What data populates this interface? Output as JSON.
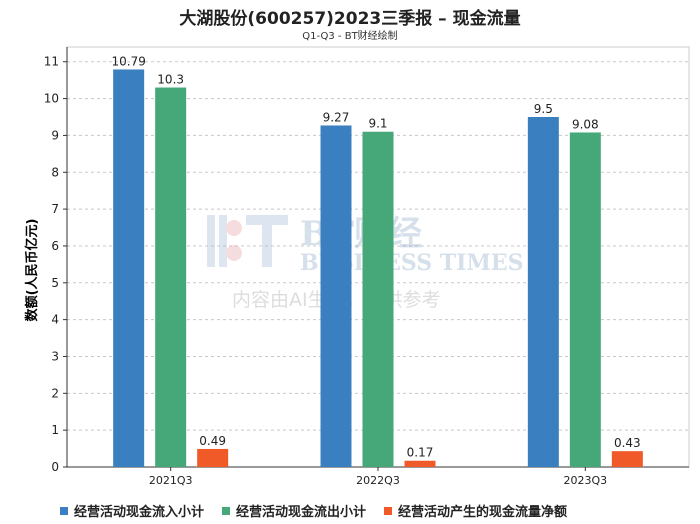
{
  "title": "大湖股份(600257)2023三季报 – 现金流量",
  "subtitle": "Q1-Q3 - BT财经绘制",
  "watermark": {
    "brand": "BT财经",
    "sub": "BUSINESS TIMES",
    "notice": "内容由AI生成，仅供参考"
  },
  "colors": {
    "series": [
      "#3a80c0",
      "#46a878",
      "#f05a28"
    ]
  },
  "chart_data": {
    "type": "bar",
    "categories": [
      "2021Q3",
      "2022Q3",
      "2023Q3"
    ],
    "series": [
      {
        "name": "经营活动现金流入小计",
        "values": [
          10.79,
          9.27,
          9.5
        ]
      },
      {
        "name": "经营活动现金流出小计",
        "values": [
          10.3,
          9.1,
          9.08
        ]
      },
      {
        "name": "经营活动产生的现金流量净额",
        "values": [
          0.49,
          0.17,
          0.43
        ]
      }
    ],
    "ylabel": "数额(人民币亿元)",
    "xlabel": "",
    "ylim": [
      0,
      11.4
    ],
    "yticks": [
      0,
      1,
      2,
      3,
      4,
      5,
      6,
      7,
      8,
      9,
      10,
      11
    ],
    "grid": true,
    "legend": "bottom"
  }
}
